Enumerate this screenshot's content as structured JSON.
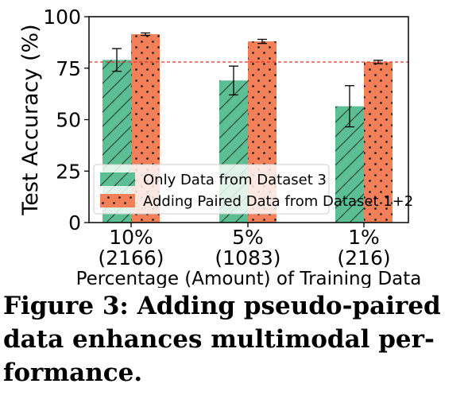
{
  "figure": {
    "caption_lines": [
      "Figure 3: Adding pseudo-paired",
      "data enhances multimodal per-",
      "formance."
    ]
  },
  "chart_data": {
    "type": "bar",
    "title": "",
    "xlabel": "Percentage (Amount) of Training Data",
    "ylabel": "Test Accuracy (%)",
    "ylim": [
      0,
      100
    ],
    "yticks": [
      0,
      25,
      50,
      75,
      100
    ],
    "categories": [
      {
        "line1": "10%",
        "line2": "(2166)"
      },
      {
        "line1": "5%",
        "line2": "(1083)"
      },
      {
        "line1": "1%",
        "line2": "(216)"
      }
    ],
    "series": [
      {
        "name": "Only Data from Dataset 3",
        "color": "#5cbf94",
        "pattern": "diagonal-hatch",
        "values": [
          79,
          69,
          56.5
        ],
        "errors": [
          5.5,
          7,
          10
        ]
      },
      {
        "name": "Adding Paired Data from Dataset 1+2",
        "color": "#f4805a",
        "pattern": "dots",
        "values": [
          91.5,
          88,
          78
        ],
        "errors": [
          0.6,
          1,
          0.8
        ]
      }
    ],
    "reference_line": {
      "y": 78,
      "color": "#e8312b",
      "style": "dashed"
    },
    "legend_position": "lower-left",
    "grid": false
  }
}
